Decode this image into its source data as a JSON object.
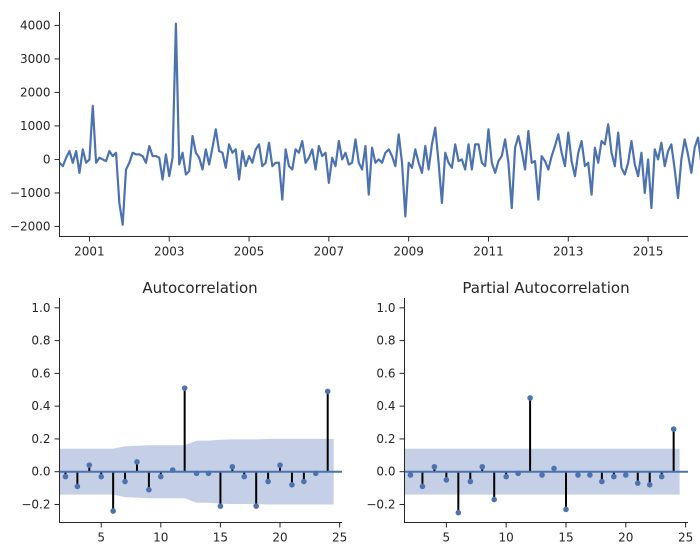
{
  "colors": {
    "line": "#4c72b0",
    "marker": "#4c72b0",
    "stem": "#000000",
    "band": "#c5d0e6",
    "axis": "#262626"
  },
  "chart_data": [
    {
      "type": "line",
      "title": "",
      "xlabel": "",
      "ylabel": "",
      "xlim": [
        2000.25,
        2016.0
      ],
      "ylim": [
        -2300,
        4400
      ],
      "x_ticks": [
        2001,
        2003,
        2005,
        2007,
        2009,
        2011,
        2013,
        2015
      ],
      "x_tick_labels": [
        "2001",
        "2003",
        "2005",
        "2007",
        "2009",
        "2011",
        "2013",
        "2015"
      ],
      "y_ticks": [
        -2000,
        -1000,
        0,
        1000,
        2000,
        3000,
        4000
      ],
      "y_tick_labels": [
        "−2000",
        "−1000",
        "0",
        "1000",
        "2000",
        "3000",
        "4000"
      ],
      "grid": false,
      "x_start": 2000.25,
      "x_step": 0.0833333,
      "series": [
        {
          "values": [
            -100,
            -200,
            50,
            250,
            -100,
            250,
            -400,
            300,
            -100,
            0,
            1600,
            -100,
            50,
            0,
            -50,
            250,
            100,
            200,
            -1300,
            -1950,
            -300,
            -100,
            200,
            150,
            150,
            100,
            -100,
            400,
            100,
            100,
            50,
            -600,
            150,
            -500,
            50,
            4050,
            -150,
            200,
            -450,
            -350,
            700,
            200,
            50,
            -300,
            300,
            -150,
            350,
            900,
            250,
            200,
            -250,
            450,
            200,
            300,
            -600,
            250,
            -200,
            100,
            -100,
            300,
            450,
            -200,
            -100,
            500,
            -200,
            -100,
            -100,
            -1200,
            300,
            -200,
            -300,
            300,
            200,
            550,
            -100,
            50,
            300,
            -300,
            400,
            100,
            200,
            -700,
            50,
            -200,
            550,
            0,
            200,
            -150,
            -100,
            600,
            -100,
            -300,
            400,
            -1050,
            350,
            -100,
            0,
            -100,
            200,
            300,
            100,
            -200,
            750,
            -100,
            -1700,
            -100,
            -250,
            300,
            -100,
            -400,
            400,
            -300,
            450,
            950,
            -100,
            -1300,
            200,
            -100,
            -250,
            450,
            -50,
            0,
            -300,
            450,
            -300,
            450,
            450,
            -100,
            -200,
            900,
            -100,
            -400,
            -50,
            100,
            600,
            -100,
            -1450,
            350,
            700,
            250,
            -300,
            850,
            -100,
            -50,
            -1200,
            100,
            -50,
            -300,
            100,
            400,
            750,
            200,
            -200,
            800,
            -50,
            -500,
            200,
            550,
            -200,
            -100,
            -1050,
            350,
            -100,
            550,
            450,
            1050,
            200,
            -200,
            800,
            -250,
            -450,
            -100,
            550,
            -150,
            -500,
            200,
            -1000,
            0,
            -1450,
            300,
            0,
            500,
            -200,
            250,
            450,
            -300,
            -1150,
            0,
            600,
            150,
            -400,
            350,
            650,
            -100,
            -300,
            -100,
            0,
            50,
            0,
            1000,
            -100,
            100,
            -100,
            -950,
            200,
            -200,
            -1050
          ]
        }
      ]
    },
    {
      "type": "bar",
      "title": "Autocorrelation",
      "xlabel": "",
      "ylabel": "",
      "xlim": [
        1.5,
        25.2
      ],
      "ylim": [
        -0.31,
        1.06
      ],
      "x_ticks": [
        5,
        10,
        15,
        20,
        25
      ],
      "x_tick_labels": [
        "5",
        "10",
        "15",
        "20",
        "25"
      ],
      "y_ticks": [
        -0.2,
        0.0,
        0.2,
        0.4,
        0.6,
        0.8,
        1.0
      ],
      "y_tick_labels": [
        "−0.2",
        "0.0",
        "0.2",
        "0.4",
        "0.6",
        "0.8",
        "1.0"
      ],
      "grid": false,
      "lags": [
        2,
        3,
        4,
        5,
        6,
        7,
        8,
        9,
        10,
        11,
        12,
        13,
        14,
        15,
        16,
        17,
        18,
        19,
        20,
        21,
        22,
        23,
        24
      ],
      "values": [
        -0.03,
        -0.09,
        0.04,
        -0.03,
        -0.24,
        -0.06,
        0.06,
        -0.11,
        -0.03,
        0.01,
        0.51,
        -0.01,
        -0.01,
        -0.21,
        0.03,
        -0.03,
        -0.21,
        -0.06,
        0.04,
        -0.08,
        -0.06,
        -0.01,
        0.49
      ],
      "confint_upper": [
        0.14,
        0.14,
        0.14,
        0.14,
        0.14,
        0.155,
        0.158,
        0.162,
        0.162,
        0.162,
        0.162,
        0.19,
        0.19,
        0.195,
        0.197,
        0.197,
        0.197,
        0.2,
        0.2,
        0.2,
        0.2,
        0.2,
        0.2
      ]
    },
    {
      "type": "bar",
      "title": "Partial Autocorrelation",
      "xlabel": "",
      "ylabel": "",
      "xlim": [
        1.5,
        25.2
      ],
      "ylim": [
        -0.31,
        1.06
      ],
      "x_ticks": [
        5,
        10,
        15,
        20,
        25
      ],
      "x_tick_labels": [
        "5",
        "10",
        "15",
        "20",
        "25"
      ],
      "y_ticks": [
        -0.2,
        0.0,
        0.2,
        0.4,
        0.6,
        0.8,
        1.0
      ],
      "y_tick_labels": [
        "−0.2",
        "0.0",
        "0.2",
        "0.4",
        "0.6",
        "0.8",
        "1.0"
      ],
      "grid": false,
      "lags": [
        2,
        3,
        4,
        5,
        6,
        7,
        8,
        9,
        10,
        11,
        12,
        13,
        14,
        15,
        16,
        17,
        18,
        19,
        20,
        21,
        22,
        23,
        24
      ],
      "values": [
        -0.02,
        -0.09,
        0.03,
        -0.05,
        -0.25,
        -0.06,
        0.03,
        -0.17,
        -0.03,
        -0.01,
        0.45,
        -0.02,
        0.02,
        -0.23,
        -0.02,
        -0.02,
        -0.06,
        -0.03,
        -0.02,
        -0.07,
        -0.08,
        -0.03,
        0.26
      ],
      "confint_upper": [
        0.14,
        0.14,
        0.14,
        0.14,
        0.14,
        0.14,
        0.14,
        0.14,
        0.14,
        0.14,
        0.14,
        0.14,
        0.14,
        0.14,
        0.14,
        0.14,
        0.14,
        0.14,
        0.14,
        0.14,
        0.14,
        0.14,
        0.14
      ]
    }
  ]
}
